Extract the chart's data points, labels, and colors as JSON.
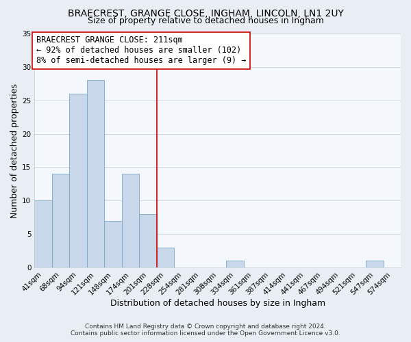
{
  "title": "BRAECREST, GRANGE CLOSE, INGHAM, LINCOLN, LN1 2UY",
  "subtitle": "Size of property relative to detached houses in Ingham",
  "xlabel": "Distribution of detached houses by size in Ingham",
  "ylabel": "Number of detached properties",
  "bar_labels": [
    "41sqm",
    "68sqm",
    "94sqm",
    "121sqm",
    "148sqm",
    "174sqm",
    "201sqm",
    "228sqm",
    "254sqm",
    "281sqm",
    "308sqm",
    "334sqm",
    "361sqm",
    "387sqm",
    "414sqm",
    "441sqm",
    "467sqm",
    "494sqm",
    "521sqm",
    "547sqm",
    "574sqm"
  ],
  "bar_values": [
    10,
    14,
    26,
    28,
    7,
    14,
    8,
    3,
    0,
    0,
    0,
    1,
    0,
    0,
    0,
    0,
    0,
    0,
    0,
    1,
    0
  ],
  "bar_color": "#c8d8ea",
  "bar_edge_color": "#7aa8c8",
  "reference_line_color": "#cc0000",
  "ylim": [
    0,
    35
  ],
  "yticks": [
    0,
    5,
    10,
    15,
    20,
    25,
    30,
    35
  ],
  "annotation_title": "BRAECREST GRANGE CLOSE: 211sqm",
  "annotation_line1": "← 92% of detached houses are smaller (102)",
  "annotation_line2": "8% of semi-detached houses are larger (9) →",
  "footer_line1": "Contains HM Land Registry data © Crown copyright and database right 2024.",
  "footer_line2": "Contains public sector information licensed under the Open Government Licence v3.0.",
  "bg_color": "#e8eef4",
  "plot_bg_color": "#f4f8fc",
  "grid_color": "#c8d4dc",
  "title_fontsize": 10,
  "subtitle_fontsize": 9,
  "axis_label_fontsize": 9,
  "tick_fontsize": 7.5,
  "annotation_fontsize": 8.5,
  "footer_fontsize": 6.5
}
